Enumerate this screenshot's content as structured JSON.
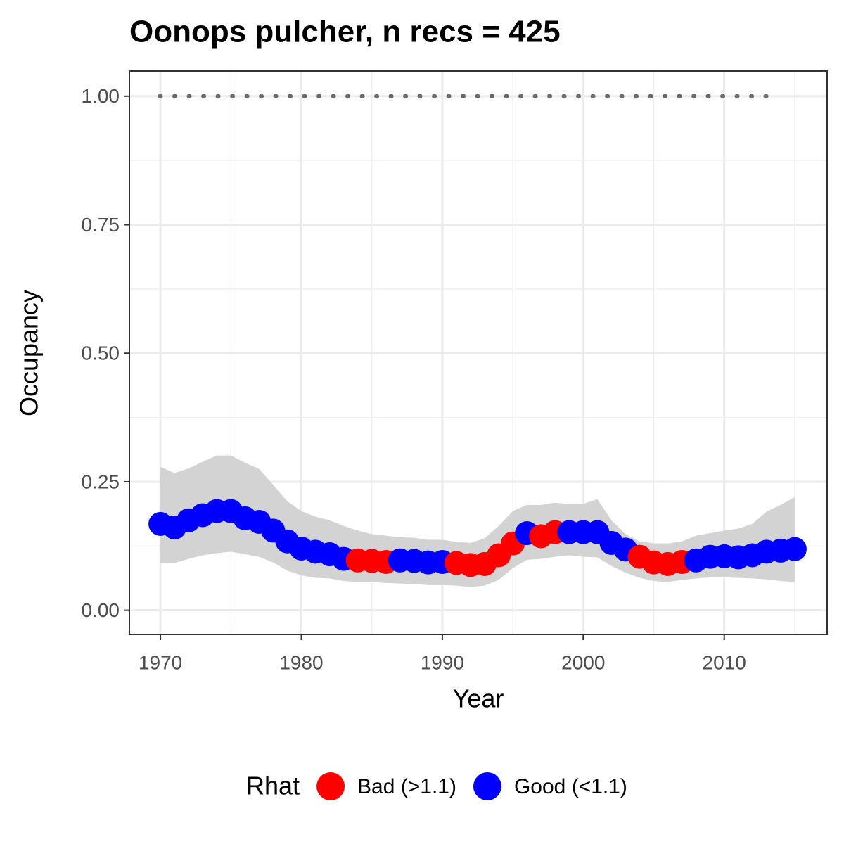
{
  "chart_data": {
    "type": "scatter",
    "title": "Oonops pulcher, n recs = 425",
    "x_label": "Year",
    "y_label": "Occupancy",
    "x": [
      1970,
      1971,
      1972,
      1973,
      1974,
      1975,
      1976,
      1977,
      1978,
      1979,
      1980,
      1981,
      1982,
      1983,
      1984,
      1985,
      1986,
      1987,
      1988,
      1989,
      1990,
      1991,
      1992,
      1993,
      1994,
      1995,
      1996,
      1997,
      1998,
      1999,
      2000,
      2001,
      2002,
      2003,
      2004,
      2005,
      2006,
      2007,
      2008,
      2009,
      2010,
      2011,
      2012,
      2013,
      2014,
      2015
    ],
    "series": [
      {
        "name": "Bad (>1.1)",
        "color": "#ff0000",
        "values": [
          null,
          null,
          null,
          null,
          null,
          null,
          null,
          null,
          null,
          null,
          null,
          null,
          null,
          null,
          0.097,
          0.096,
          0.094,
          null,
          null,
          null,
          null,
          0.092,
          0.088,
          0.09,
          0.107,
          0.13,
          null,
          0.144,
          0.152,
          null,
          null,
          null,
          null,
          null,
          0.104,
          0.093,
          0.09,
          0.094,
          null,
          null,
          null,
          null,
          null,
          null,
          null,
          null
        ]
      },
      {
        "name": "Good (<1.1)",
        "color": "#0000ff",
        "values": [
          0.168,
          0.161,
          0.175,
          0.185,
          0.193,
          0.193,
          0.179,
          0.172,
          0.155,
          0.134,
          0.12,
          0.114,
          0.109,
          0.1,
          null,
          null,
          null,
          0.097,
          0.096,
          0.093,
          0.094,
          null,
          null,
          null,
          null,
          null,
          0.15,
          null,
          null,
          0.152,
          0.152,
          0.152,
          0.131,
          0.118,
          null,
          null,
          null,
          null,
          0.097,
          0.104,
          0.105,
          0.103,
          0.107,
          0.114,
          0.116,
          0.119
        ]
      }
    ],
    "band": {
      "color": "#d3d3d3",
      "upper": [
        0.279,
        0.267,
        0.276,
        0.289,
        0.301,
        0.301,
        0.287,
        0.275,
        0.244,
        0.212,
        0.193,
        0.182,
        0.175,
        0.164,
        0.155,
        0.148,
        0.145,
        0.142,
        0.141,
        0.137,
        0.137,
        0.133,
        0.131,
        0.14,
        0.164,
        0.193,
        0.205,
        0.205,
        0.209,
        0.207,
        0.207,
        0.216,
        0.175,
        0.148,
        0.134,
        0.13,
        0.13,
        0.134,
        0.145,
        0.15,
        0.155,
        0.159,
        0.168,
        0.192,
        0.205,
        0.22
      ],
      "lower": [
        0.092,
        0.092,
        0.1,
        0.107,
        0.111,
        0.114,
        0.109,
        0.104,
        0.093,
        0.077,
        0.068,
        0.063,
        0.062,
        0.057,
        0.055,
        0.055,
        0.053,
        0.052,
        0.051,
        0.049,
        0.049,
        0.048,
        0.045,
        0.048,
        0.059,
        0.082,
        0.098,
        0.1,
        0.104,
        0.107,
        0.104,
        0.103,
        0.086,
        0.073,
        0.063,
        0.057,
        0.055,
        0.059,
        0.062,
        0.064,
        0.064,
        0.063,
        0.062,
        0.06,
        0.057,
        0.055
      ]
    },
    "reference": {
      "x": [
        1970,
        2013
      ],
      "values": [
        1,
        1
      ],
      "color": "#6b6b6b"
    },
    "legend_title": "Rhat",
    "legend_position": "bottom",
    "xlim": [
      1967.8,
      2017.3
    ],
    "ylim": [
      -0.047,
      1.049
    ],
    "xticks": [
      1970,
      1980,
      1990,
      2000,
      2010
    ],
    "yticks": [
      {
        "value": 0,
        "label": "0.00"
      },
      {
        "value": 0.25,
        "label": "0.25"
      },
      {
        "value": 0.5,
        "label": "0.50"
      },
      {
        "value": 0.75,
        "label": "0.75"
      },
      {
        "value": 1,
        "label": "1.00"
      }
    ],
    "grid": true
  }
}
